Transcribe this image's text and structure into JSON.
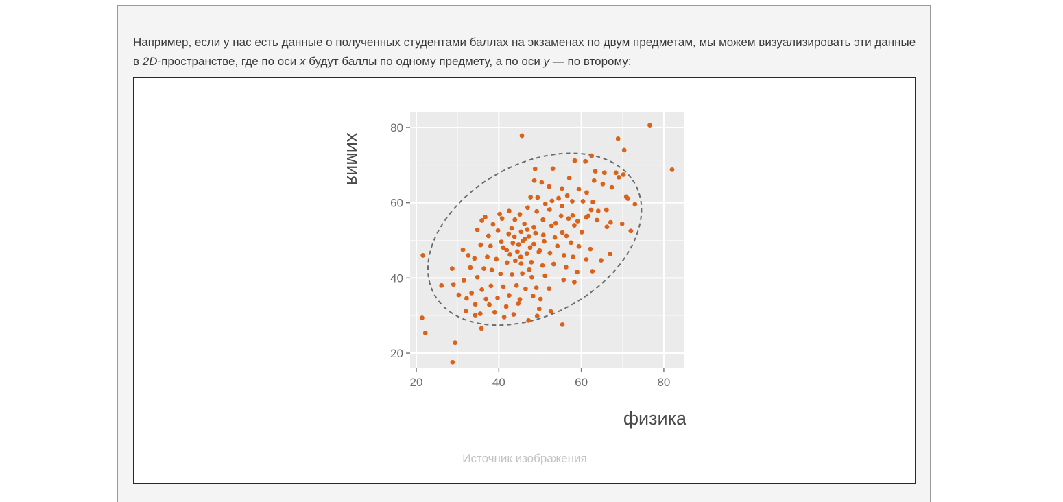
{
  "article": {
    "paragraph_part1": "Например, если у нас есть данные о полученных студентами баллах на экзаменах по двум предметам, мы можем визуализировать эти данные в ",
    "paragraph_em1": "2D",
    "paragraph_part2": "-пространстве, где по оси ",
    "paragraph_em2": "x",
    "paragraph_part3": " будут баллы по одному предмету, а по оси ",
    "paragraph_em3": "y",
    "paragraph_part4": " — по второму:",
    "caption": "Источник изображения"
  },
  "colors": {
    "point": "#d9631a",
    "panel": "#ebebeb",
    "grid": "#ffffff",
    "ellipse": "#6b6b6b"
  },
  "chart_data": {
    "type": "scatter",
    "xlabel": "физика",
    "ylabel": "химия",
    "xlim": [
      18.5,
      85
    ],
    "ylim": [
      16,
      84
    ],
    "xticks": [
      20,
      40,
      60,
      80
    ],
    "yticks": [
      20,
      40,
      60,
      80
    ],
    "grid": true,
    "ellipse": {
      "center": [
        48.7,
        50.3
      ],
      "half_width": 28.5,
      "half_height": 19.5,
      "angle_deg": 35,
      "style": "dashed"
    },
    "points": [
      [
        76.6,
        80.6
      ],
      [
        45.6,
        77.8
      ],
      [
        68.9,
        77.0
      ],
      [
        82.0,
        68.8
      ],
      [
        70.4,
        74.0
      ],
      [
        58.4,
        71.2
      ],
      [
        61.0,
        71.0
      ],
      [
        62.5,
        72.5
      ],
      [
        48.8,
        69.0
      ],
      [
        53.1,
        69.1
      ],
      [
        68.4,
        68.0
      ],
      [
        69.1,
        66.8
      ],
      [
        70.2,
        67.5
      ],
      [
        65.6,
        68.0
      ],
      [
        63.4,
        68.4
      ],
      [
        48.6,
        65.9
      ],
      [
        50.4,
        65.4
      ],
      [
        57.1,
        66.6
      ],
      [
        63.1,
        65.9
      ],
      [
        65.2,
        65.0
      ],
      [
        67.4,
        64.1
      ],
      [
        52.2,
        64.3
      ],
      [
        55.3,
        63.8
      ],
      [
        59.4,
        63.6
      ],
      [
        61.3,
        62.7
      ],
      [
        54.5,
        61.2
      ],
      [
        56.6,
        61.9
      ],
      [
        52.9,
        60.5
      ],
      [
        47.7,
        61.5
      ],
      [
        49.4,
        61.4
      ],
      [
        57.8,
        60.4
      ],
      [
        60.4,
        60.4
      ],
      [
        62.8,
        60.2
      ],
      [
        70.9,
        61.6
      ],
      [
        71.3,
        61.1
      ],
      [
        73.0,
        59.6
      ],
      [
        51.3,
        59.7
      ],
      [
        55.3,
        59.1
      ],
      [
        62.4,
        58.1
      ],
      [
        64.1,
        57.8
      ],
      [
        66.1,
        58.1
      ],
      [
        61.7,
        56.5
      ],
      [
        57.9,
        56.6
      ],
      [
        55.1,
        56.5
      ],
      [
        52.3,
        58.2
      ],
      [
        47.0,
        58.7
      ],
      [
        49.2,
        57.7
      ],
      [
        42.5,
        57.8
      ],
      [
        40.2,
        57.0
      ],
      [
        36.7,
        56.2
      ],
      [
        35.9,
        55.3
      ],
      [
        38.6,
        54.3
      ],
      [
        40.8,
        55.8
      ],
      [
        43.9,
        55.5
      ],
      [
        45.1,
        56.9
      ],
      [
        50.7,
        55.5
      ],
      [
        53.8,
        54.6
      ],
      [
        56.9,
        55.8
      ],
      [
        59.1,
        55.1
      ],
      [
        61.2,
        56.1
      ],
      [
        63.8,
        55.4
      ],
      [
        67.1,
        54.8
      ],
      [
        69.9,
        54.4
      ],
      [
        72.0,
        52.5
      ],
      [
        66.2,
        53.6
      ],
      [
        58.3,
        54.0
      ],
      [
        55.4,
        52.1
      ],
      [
        52.8,
        53.9
      ],
      [
        48.5,
        53.5
      ],
      [
        46.2,
        54.4
      ],
      [
        43.1,
        53.2
      ],
      [
        39.8,
        52.6
      ],
      [
        37.5,
        51.2
      ],
      [
        34.8,
        52.8
      ],
      [
        42.4,
        51.7
      ],
      [
        45.4,
        52.3
      ],
      [
        47.3,
        51.1
      ],
      [
        50.8,
        51.4
      ],
      [
        53.6,
        50.8
      ],
      [
        56.4,
        51.2
      ],
      [
        60.1,
        52.2
      ],
      [
        57.5,
        49.4
      ],
      [
        59.4,
        48.4
      ],
      [
        54.2,
        48.5
      ],
      [
        51.0,
        49.7
      ],
      [
        48.5,
        49.0
      ],
      [
        45.8,
        49.8
      ],
      [
        43.4,
        49.3
      ],
      [
        40.6,
        49.6
      ],
      [
        38.0,
        48.5
      ],
      [
        35.6,
        48.8
      ],
      [
        41.9,
        47.4
      ],
      [
        44.5,
        47.0
      ],
      [
        46.8,
        46.5
      ],
      [
        49.9,
        47.3
      ],
      [
        52.4,
        46.6
      ],
      [
        55.8,
        46.0
      ],
      [
        58.0,
        45.6
      ],
      [
        61.2,
        44.9
      ],
      [
        64.8,
        44.7
      ],
      [
        67.0,
        46.4
      ],
      [
        62.2,
        47.7
      ],
      [
        31.3,
        47.5
      ],
      [
        32.6,
        46.0
      ],
      [
        34.1,
        45.2
      ],
      [
        37.2,
        45.6
      ],
      [
        39.4,
        45.0
      ],
      [
        42.0,
        44.1
      ],
      [
        44.0,
        44.6
      ],
      [
        45.4,
        43.8
      ],
      [
        47.9,
        44.2
      ],
      [
        50.6,
        43.3
      ],
      [
        53.3,
        43.7
      ],
      [
        56.3,
        42.9
      ],
      [
        59.0,
        41.6
      ],
      [
        62.7,
        41.8
      ],
      [
        21.6,
        46.0
      ],
      [
        28.7,
        42.5
      ],
      [
        33.1,
        42.8
      ],
      [
        36.4,
        42.5
      ],
      [
        38.3,
        42.1
      ],
      [
        40.4,
        41.1
      ],
      [
        43.2,
        40.9
      ],
      [
        45.7,
        41.2
      ],
      [
        48.0,
        40.2
      ],
      [
        51.2,
        40.6
      ],
      [
        55.7,
        39.5
      ],
      [
        58.3,
        38.9
      ],
      [
        34.8,
        40.2
      ],
      [
        31.5,
        39.4
      ],
      [
        29.0,
        38.3
      ],
      [
        26.1,
        38.0
      ],
      [
        38.1,
        37.9
      ],
      [
        41.1,
        37.7
      ],
      [
        44.3,
        38.0
      ],
      [
        46.5,
        37.1
      ],
      [
        49.1,
        37.4
      ],
      [
        52.2,
        37.2
      ],
      [
        35.9,
        36.9
      ],
      [
        33.4,
        36.0
      ],
      [
        30.3,
        35.5
      ],
      [
        32.2,
        34.6
      ],
      [
        36.9,
        34.4
      ],
      [
        39.7,
        34.7
      ],
      [
        42.5,
        35.4
      ],
      [
        45.1,
        34.3
      ],
      [
        48.3,
        35.2
      ],
      [
        50.1,
        34.4
      ],
      [
        34.3,
        33.0
      ],
      [
        37.7,
        32.9
      ],
      [
        41.8,
        32.4
      ],
      [
        44.7,
        33.2
      ],
      [
        52.6,
        31.1
      ],
      [
        49.8,
        31.8
      ],
      [
        34.3,
        30.1
      ],
      [
        35.5,
        30.5
      ],
      [
        41.3,
        29.6
      ],
      [
        49.3,
        29.9
      ],
      [
        55.4,
        27.6
      ],
      [
        21.4,
        29.4
      ],
      [
        35.8,
        26.6
      ],
      [
        22.2,
        25.4
      ],
      [
        29.4,
        22.8
      ],
      [
        28.8,
        17.6
      ],
      [
        32.0,
        31.2
      ],
      [
        47.2,
        28.7
      ],
      [
        43.6,
        30.3
      ],
      [
        39.0,
        30.9
      ],
      [
        46.3,
        50.4
      ],
      [
        47.6,
        48.1
      ],
      [
        48.9,
        51.9
      ],
      [
        44.8,
        48.9
      ],
      [
        43.8,
        51.0
      ],
      [
        46.9,
        52.9
      ],
      [
        49.7,
        46.9
      ],
      [
        45.3,
        45.6
      ],
      [
        42.7,
        46.2
      ],
      [
        41.1,
        48.1
      ],
      [
        47.4,
        42.2
      ]
    ]
  }
}
